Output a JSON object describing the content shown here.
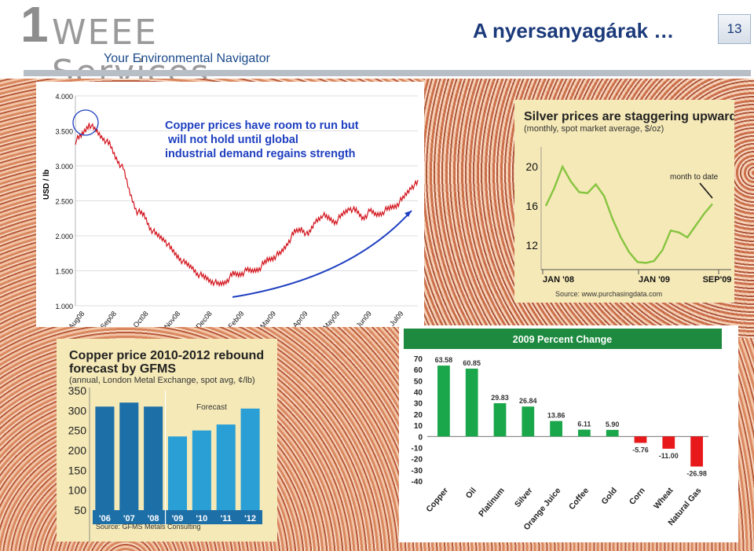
{
  "header": {
    "logo_one": "1",
    "logo_text": "WEEE Services",
    "tagline": "Your Environmental Navigator",
    "title": "A nyersanyagárak …",
    "page_number": "13"
  },
  "chart_data": [
    {
      "type": "line",
      "ylabel": "USD / lb",
      "annotation": "Copper prices have room to run but will not hold until global industrial demand regains strength",
      "yticks": [
        "4.000",
        "3.500",
        "3.000",
        "2.500",
        "2.000",
        "1.500",
        "1.000"
      ],
      "ylim": [
        1.0,
        4.0
      ],
      "xticks": [
        "Aug08",
        "Sep08",
        "Oct08",
        "Nov08",
        "Dec08",
        "Feb09",
        "Mar09",
        "Apr09",
        "May09",
        "Jun09",
        "Jul09"
      ],
      "x": [
        0,
        1,
        2,
        3,
        4,
        5,
        6,
        7,
        8,
        9,
        10,
        11,
        12,
        13,
        14,
        15,
        16,
        17,
        18,
        19,
        20,
        21,
        22,
        23,
        24,
        25,
        26,
        27,
        28,
        29,
        30,
        31,
        32,
        33,
        34,
        35,
        36,
        37,
        38,
        39,
        40,
        41,
        42,
        43,
        44,
        45,
        46,
        47,
        48,
        49,
        50
      ],
      "y": [
        3.35,
        3.45,
        3.6,
        3.5,
        3.4,
        3.3,
        3.1,
        2.95,
        2.6,
        2.35,
        2.3,
        2.1,
        2.0,
        1.95,
        1.8,
        1.7,
        1.6,
        1.55,
        1.45,
        1.4,
        1.35,
        1.3,
        1.35,
        1.45,
        1.45,
        1.5,
        1.5,
        1.55,
        1.65,
        1.7,
        1.75,
        1.9,
        2.05,
        2.1,
        2.0,
        2.2,
        2.3,
        2.25,
        2.2,
        2.3,
        2.4,
        2.35,
        2.25,
        2.35,
        2.3,
        2.35,
        2.4,
        2.45,
        2.55,
        2.7,
        2.75
      ]
    },
    {
      "type": "line",
      "title": "Silver prices are staggering upward",
      "subtitle": "(monthly, spot market average, $/oz)",
      "yticks": [
        "20",
        "16",
        "12"
      ],
      "ylim": [
        10,
        22
      ],
      "xticks": [
        "JAN '08",
        "JAN '09",
        "SEP'09"
      ],
      "annotation": "month to date",
      "source": "Source: www.purchasingdata.com",
      "x": [
        0,
        1,
        2,
        3,
        4,
        5,
        6,
        7,
        8,
        9,
        10,
        11,
        12,
        13,
        14,
        15,
        16,
        17,
        18,
        19,
        20
      ],
      "y": [
        16.0,
        17.8,
        20.0,
        18.5,
        17.4,
        17.3,
        18.2,
        17.0,
        14.7,
        12.8,
        11.3,
        10.3,
        10.2,
        10.4,
        11.5,
        13.5,
        13.3,
        12.8,
        14.0,
        15.2,
        16.2
      ]
    },
    {
      "type": "bar",
      "title": "Copper price 2010-2012 rebound forecast by GFMS",
      "subtitle": "(annual, London Metal Exchange, spot avg, ¢/lb)",
      "categories": [
        "'06",
        "'07",
        "'08",
        "'09",
        "'10",
        "'11",
        "'12"
      ],
      "values": [
        310,
        320,
        310,
        235,
        250,
        265,
        305
      ],
      "yticks": [
        "350",
        "300",
        "250",
        "200",
        "150",
        "100",
        "50"
      ],
      "ylim": [
        50,
        350
      ],
      "annotation": "Forecast",
      "source": "Source: GFMS Metals Consulting",
      "colors": {
        "actual": "#1d6fa8",
        "forecast": "#2a9fd6"
      }
    },
    {
      "type": "bar",
      "title": "2009 Percent Change",
      "categories": [
        "Copper",
        "Oil",
        "Platinum",
        "Silver",
        "Orange Juice",
        "Coffee",
        "Gold",
        "Corn",
        "Wheat",
        "Natural Gas"
      ],
      "values": [
        63.58,
        60.85,
        29.83,
        26.84,
        13.86,
        6.11,
        5.9,
        -5.76,
        -11.0,
        -26.98
      ],
      "value_labels": [
        "63.58",
        "60.85",
        "29.83",
        "26.84",
        "13.86",
        "6.11",
        "5.90",
        "-5.76",
        "-11.00",
        "-26.98"
      ],
      "yticks": [
        "70",
        "60",
        "50",
        "40",
        "30",
        "20",
        "10",
        "0",
        "-10",
        "-20",
        "-30",
        "-40"
      ],
      "ylim": [
        -40,
        70
      ],
      "colors": {
        "positive": "#1aa64a",
        "negative": "#e8191b"
      }
    }
  ]
}
